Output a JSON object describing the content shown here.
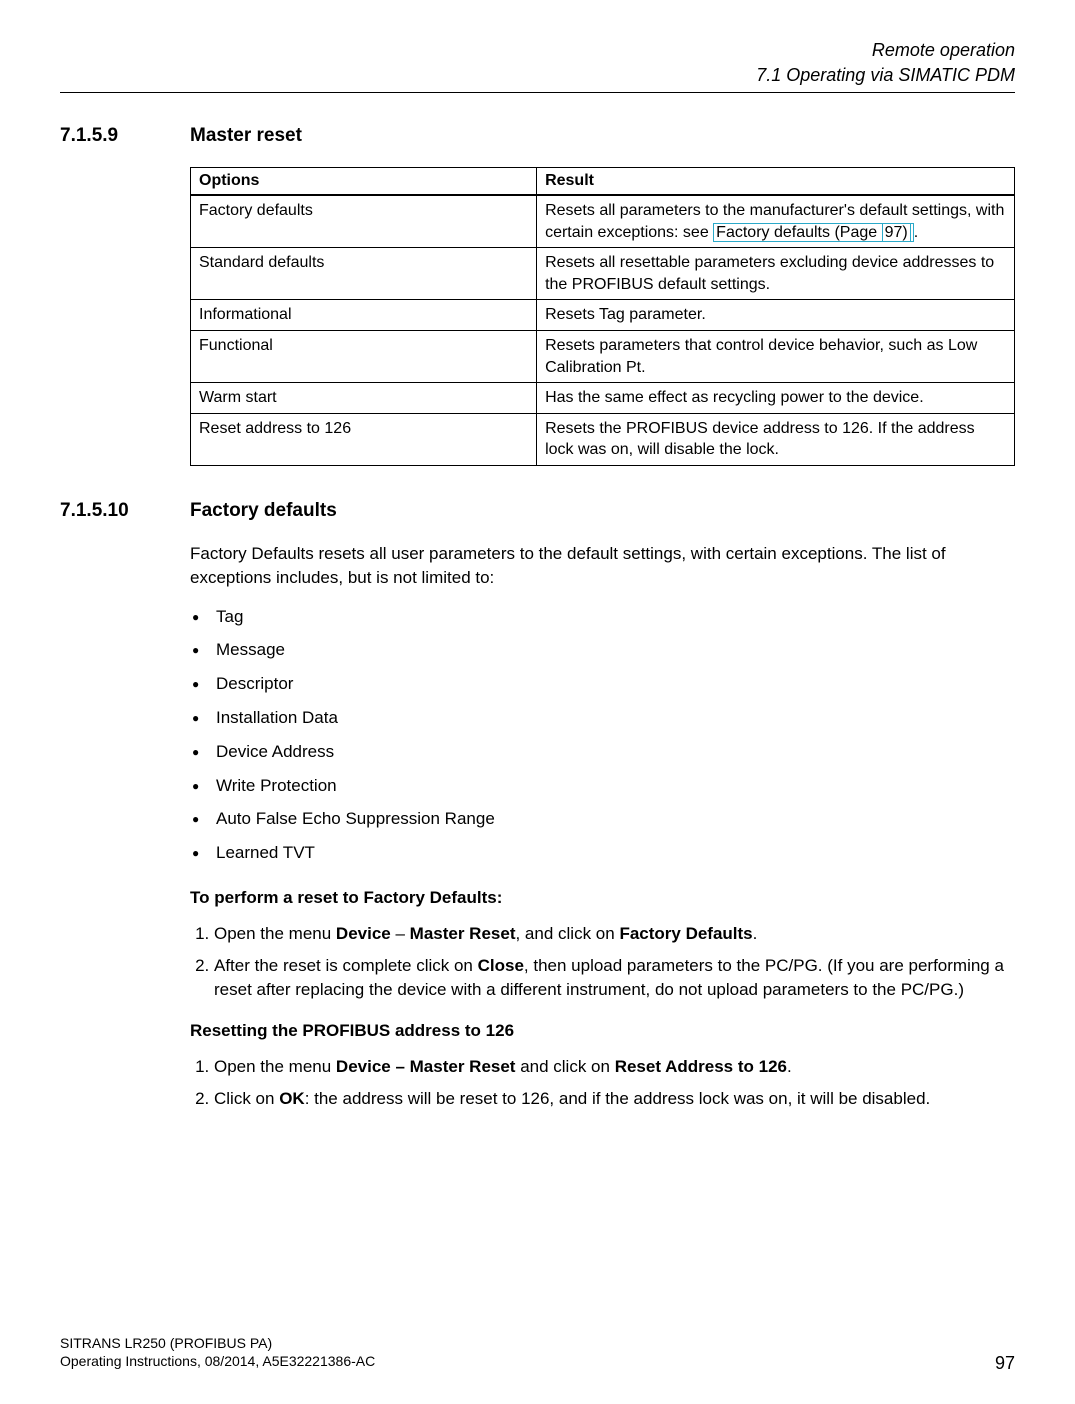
{
  "header": {
    "chapter": "Remote operation",
    "section": "7.1 Operating via SIMATIC PDM"
  },
  "sec1": {
    "num": "7.1.5.9",
    "title": "Master reset",
    "table": {
      "head_options": "Options",
      "head_result": "Result",
      "rows": [
        {
          "opt": "Factory defaults",
          "res_pre": "Resets all parameters to the manufacturer's default settings, with certain exceptions: see ",
          "link_text": "Factory defaults ",
          "link_mid": "(Page ",
          "link_page": "97)",
          "res_post": "."
        },
        {
          "opt": "Standard defaults",
          "res": "Resets all resettable parameters excluding device addresses to the PROFIBUS default settings."
        },
        {
          "opt": "Informational",
          "res": "Resets Tag parameter."
        },
        {
          "opt": "Functional",
          "res": "Resets parameters that control device behavior, such as Low Calibration Pt."
        },
        {
          "opt": "Warm start",
          "res": "Has the same effect as recycling power to the device."
        },
        {
          "opt": "Reset address to 126",
          "res": "Resets the PROFIBUS device address to 126. If the address lock was on, will disable the lock."
        }
      ]
    }
  },
  "sec2": {
    "num": "7.1.5.10",
    "title": "Factory defaults",
    "intro": "Factory Defaults resets all user parameters to the default settings, with certain exceptions. The list of exceptions includes, but is not limited to:",
    "bullets": [
      "Tag",
      "Message",
      "Descriptor",
      "Installation Data",
      "Device Address",
      "Write Protection",
      "Auto False Echo Suppression Range",
      "Learned TVT"
    ],
    "sub1_title": "To perform a reset to Factory Defaults:",
    "sub1_steps": {
      "s1_a": "Open the menu ",
      "s1_b": "Device",
      "s1_c": " – ",
      "s1_d": "Master Reset",
      "s1_e": ", and click on ",
      "s1_f": "Factory Defaults",
      "s1_g": ".",
      "s2_a": "After the reset is complete click on ",
      "s2_b": "Close",
      "s2_c": ", then upload parameters to the PC/PG. (If you are performing a reset after replacing the device with a different instrument, do not upload parameters to the PC/PG.)"
    },
    "sub2_title": "Resetting the PROFIBUS address to 126",
    "sub2_steps": {
      "s1_a": "Open the menu ",
      "s1_b": "Device – Master Reset",
      "s1_c": " and click on ",
      "s1_d": "Reset Address to 126",
      "s1_e": ".",
      "s2_a": "Click on ",
      "s2_b": "OK",
      "s2_c": ": the address will be reset to 126, and if the address lock was on, it will be disabled."
    }
  },
  "footer": {
    "product": "SITRANS LR250 (PROFIBUS PA)",
    "doc": "Operating Instructions, 08/2014, A5E32221386-AC",
    "page": "97"
  }
}
